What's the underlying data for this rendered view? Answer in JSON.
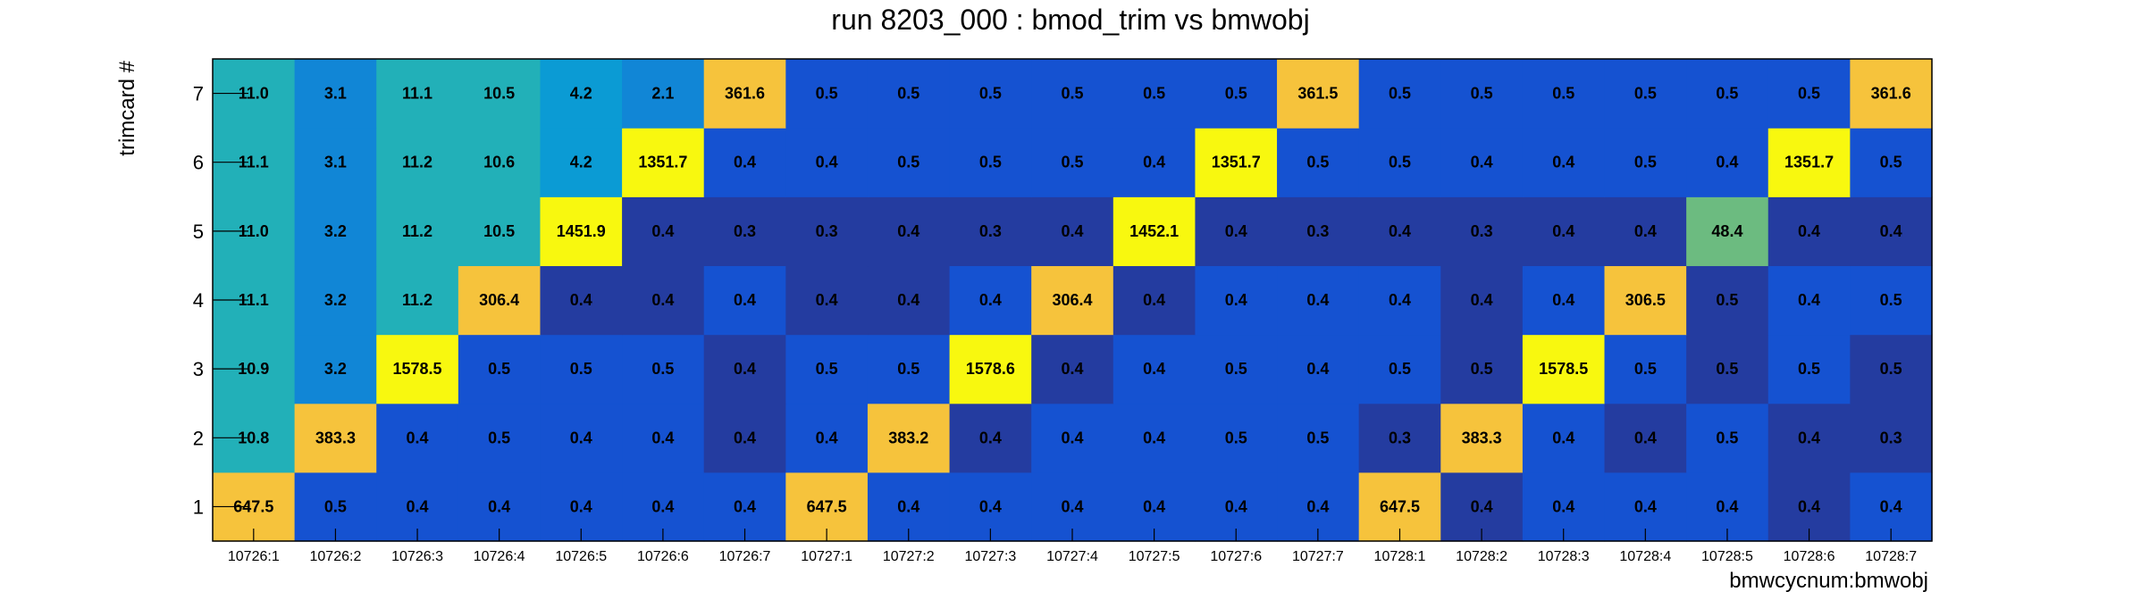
{
  "chart_data": {
    "type": "heatmap",
    "title": "run 8203_000 : bmod_trim vs bmwobj",
    "xlabel": "bmwcycnum:bmwobj",
    "ylabel": "trimcard #",
    "x_categories": [
      "10726:1",
      "10726:2",
      "10726:3",
      "10726:4",
      "10726:5",
      "10726:6",
      "10726:7",
      "10727:1",
      "10727:2",
      "10727:3",
      "10727:4",
      "10727:5",
      "10727:6",
      "10727:7",
      "10728:1",
      "10728:2",
      "10728:3",
      "10728:4",
      "10728:5",
      "10728:6",
      "10728:7"
    ],
    "y_categories": [
      "1",
      "2",
      "3",
      "4",
      "5",
      "6",
      "7"
    ],
    "values": [
      [
        "647.5",
        "0.5",
        "0.4",
        "0.4",
        "0.4",
        "0.4",
        "0.4",
        "647.5",
        "0.4",
        "0.4",
        "0.4",
        "0.4",
        "0.4",
        "0.4",
        "647.5",
        "0.4",
        "0.4",
        "0.4",
        "0.4",
        "0.4",
        "0.4"
      ],
      [
        "10.8",
        "383.3",
        "0.4",
        "0.5",
        "0.4",
        "0.4",
        "0.4",
        "0.4",
        "383.2",
        "0.4",
        "0.4",
        "0.4",
        "0.5",
        "0.5",
        "0.3",
        "383.3",
        "0.4",
        "0.4",
        "0.5",
        "0.4",
        "0.3"
      ],
      [
        "10.9",
        "3.2",
        "1578.5",
        "0.5",
        "0.5",
        "0.5",
        "0.4",
        "0.5",
        "0.5",
        "1578.6",
        "0.4",
        "0.4",
        "0.5",
        "0.4",
        "0.5",
        "0.5",
        "1578.5",
        "0.5",
        "0.5",
        "0.5",
        "0.5"
      ],
      [
        "11.1",
        "3.2",
        "11.2",
        "306.4",
        "0.4",
        "0.4",
        "0.4",
        "0.4",
        "0.4",
        "0.4",
        "306.4",
        "0.4",
        "0.4",
        "0.4",
        "0.4",
        "0.4",
        "0.4",
        "306.5",
        "0.5",
        "0.4",
        "0.5"
      ],
      [
        "11.0",
        "3.2",
        "11.2",
        "10.5",
        "1451.9",
        "0.4",
        "0.3",
        "0.3",
        "0.4",
        "0.3",
        "0.4",
        "1452.1",
        "0.4",
        "0.3",
        "0.4",
        "0.3",
        "0.4",
        "0.4",
        "48.4",
        "0.4",
        "0.4"
      ],
      [
        "11.1",
        "3.1",
        "11.2",
        "10.6",
        "4.2",
        "1351.7",
        "0.4",
        "0.4",
        "0.5",
        "0.5",
        "0.5",
        "0.4",
        "1351.7",
        "0.5",
        "0.5",
        "0.4",
        "0.4",
        "0.5",
        "0.4",
        "1351.7",
        "0.5"
      ],
      [
        "11.0",
        "3.1",
        "11.1",
        "10.5",
        "4.2",
        "2.1",
        "361.6",
        "0.5",
        "0.5",
        "0.5",
        "0.5",
        "0.5",
        "0.5",
        "361.5",
        "0.5",
        "0.5",
        "0.5",
        "0.5",
        "0.5",
        "0.5",
        "361.6"
      ]
    ],
    "colors": {
      "yellow": "#f8f80f",
      "orange": "#f6c33c",
      "green": "#6cbb80",
      "teal": "#22b0b8",
      "sky": "#0b9bd4",
      "mid_blue": "#1186d6",
      "blue": "#1552d1",
      "dark_blue": "#243ca0"
    },
    "grid": false,
    "legend": "none"
  }
}
